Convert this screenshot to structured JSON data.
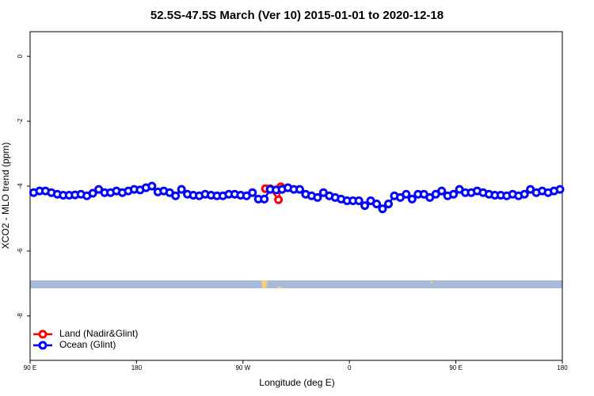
{
  "chart_data": {
    "type": "line",
    "title": "52.5S-47.5S March (Ver 10)   2015-01-01 to 2020-12-18",
    "x_label": "Longitude (deg E)",
    "y_label": "XCO2 - MLO trend (ppm)",
    "xlim": [
      90,
      540
    ],
    "xticks": [
      {
        "value": 90,
        "label": "90 E"
      },
      {
        "value": 180,
        "label": "180"
      },
      {
        "value": 270,
        "label": "90 W"
      },
      {
        "value": 360,
        "label": "0"
      },
      {
        "value": 450,
        "label": "90 E"
      },
      {
        "value": 540,
        "label": "180"
      }
    ],
    "ylim": [
      -9.37,
      0.76
    ],
    "yticks": [
      0,
      -2,
      -4,
      -6,
      -8
    ],
    "legend": "bottom-left",
    "series": [
      {
        "name": "Land (Nadir&Glint)",
        "color": "#ff0000",
        "x": [
          289,
          293,
          300,
          302
        ],
        "values": [
          -4.08,
          -4.08,
          -4.42,
          -4.02
        ]
      },
      {
        "name": "Ocean (Glint)",
        "color": "#0000ff",
        "x": [
          93,
          98,
          103,
          108,
          113,
          118,
          123,
          128,
          133,
          138,
          143,
          148,
          153,
          158,
          163,
          168,
          173,
          178,
          183,
          188,
          193,
          198,
          203,
          208,
          213,
          218,
          223,
          228,
          233,
          238,
          243,
          248,
          253,
          258,
          263,
          268,
          273,
          278,
          283,
          288,
          293,
          298,
          303,
          308,
          313,
          318,
          323,
          328,
          333,
          338,
          343,
          348,
          353,
          358,
          363,
          368,
          373,
          378,
          383,
          388,
          393,
          398,
          403,
          408,
          413,
          418,
          423,
          428,
          433,
          438,
          443,
          448,
          453,
          458,
          463,
          468,
          473,
          478,
          483,
          488,
          493,
          498,
          503,
          508,
          513,
          518,
          523,
          528,
          533,
          538
        ],
        "values": [
          -4.2,
          -4.15,
          -4.15,
          -4.2,
          -4.25,
          -4.28,
          -4.28,
          -4.27,
          -4.25,
          -4.3,
          -4.22,
          -4.1,
          -4.2,
          -4.2,
          -4.15,
          -4.2,
          -4.15,
          -4.1,
          -4.12,
          -4.05,
          -4.0,
          -4.18,
          -4.15,
          -4.2,
          -4.3,
          -4.1,
          -4.25,
          -4.28,
          -4.3,
          -4.25,
          -4.28,
          -4.3,
          -4.3,
          -4.25,
          -4.25,
          -4.28,
          -4.3,
          -4.2,
          -4.4,
          -4.4,
          -4.1,
          -4.12,
          -4.1,
          -4.05,
          -4.1,
          -4.1,
          -4.25,
          -4.3,
          -4.35,
          -4.2,
          -4.3,
          -4.35,
          -4.4,
          -4.45,
          -4.45,
          -4.45,
          -4.6,
          -4.45,
          -4.55,
          -4.7,
          -4.55,
          -4.3,
          -4.35,
          -4.25,
          -4.4,
          -4.25,
          -4.25,
          -4.35,
          -4.25,
          -4.15,
          -4.3,
          -4.25,
          -4.1,
          -4.2,
          -4.2,
          -4.15,
          -4.2,
          -4.25,
          -4.28,
          -4.28,
          -4.3,
          -4.25,
          -4.3,
          -4.25,
          -4.1,
          -4.2,
          -4.15,
          -4.2,
          -4.15,
          -4.1
        ]
      }
    ]
  }
}
